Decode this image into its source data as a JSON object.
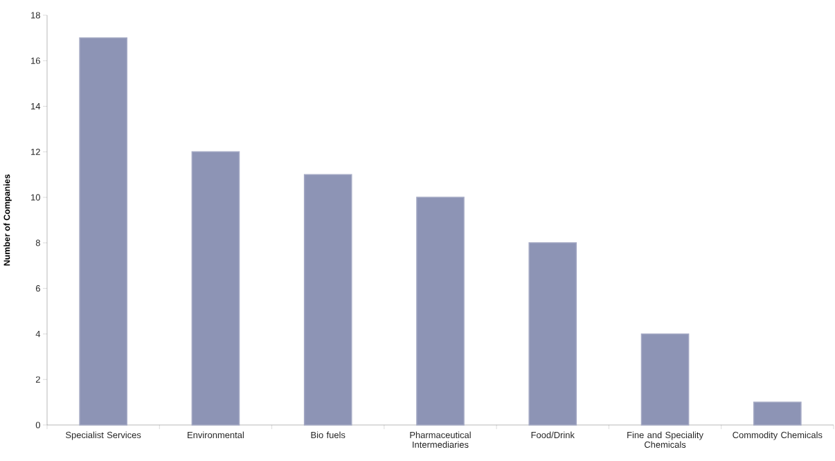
{
  "chart_data": {
    "type": "bar",
    "ylabel": "Number of Companies",
    "categories": [
      "Specialist Services",
      "Environmental",
      "Bio fuels",
      "Pharmaceutical Intermediaries",
      "Food/Drink",
      "Fine and Speciality Chemicals",
      "Commodity Chemicals"
    ],
    "values": [
      17,
      12,
      11,
      10,
      8,
      4,
      1
    ],
    "color": "#8d94b5",
    "ylim": [
      0,
      18
    ],
    "yticks": [
      0,
      2,
      4,
      6,
      8,
      10,
      12,
      14,
      16,
      18
    ],
    "grid": false
  }
}
